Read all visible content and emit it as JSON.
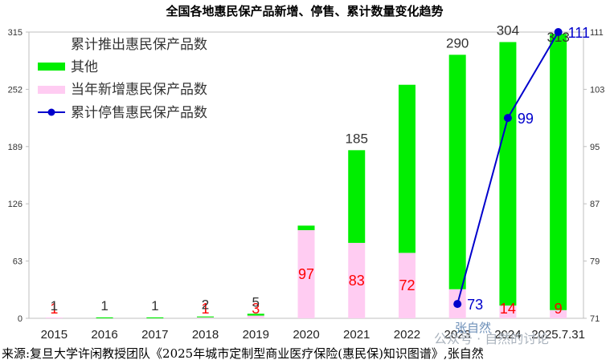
{
  "chart_data": {
    "type": "bar",
    "title": "全国各地惠民保产品新增、停售、累计数量变化趋势",
    "categories": [
      "2015",
      "2016",
      "2017",
      "2018",
      "2019",
      "2020",
      "2021",
      "2022",
      "2023",
      "2024",
      "2025.7.31"
    ],
    "category_labels": [
      "2015",
      "2016",
      "2017",
      "2018",
      "2019",
      "2020",
      "2021",
      "2022",
      "2023",
      "2024",
      "2025.7.31"
    ],
    "series": [
      {
        "name": "累计推出惠民保产品数",
        "role": "total_label",
        "values": [
          1,
          1,
          1,
          2,
          5,
          null,
          185,
          null,
          290,
          304,
          313
        ]
      },
      {
        "name": "其他",
        "color": "#00ee00",
        "values": [
          0,
          1,
          1,
          1,
          2,
          5,
          102,
          185,
          258,
          290,
          304
        ]
      },
      {
        "name": "当年新增惠民保产品数",
        "color": "#ffccf2",
        "values": [
          1,
          0,
          0,
          1,
          3,
          97,
          83,
          72,
          32,
          14,
          9
        ]
      },
      {
        "name": "累计停售惠民保产品数",
        "color": "#0000cc",
        "axis": "right",
        "x": [
          "2023",
          "2024",
          "2025.7.31"
        ],
        "values": [
          73,
          99,
          111
        ]
      }
    ],
    "new_labels": [
      "1",
      "",
      "",
      "1",
      "3",
      "97",
      "83",
      "72",
      "",
      "14",
      "9"
    ],
    "y_left": {
      "min": 0,
      "max": 315,
      "ticks": [
        "0",
        "63",
        "126",
        "189",
        "252",
        "315"
      ]
    },
    "y_right": {
      "min": 71,
      "max": 111,
      "ticks": [
        "71",
        "79",
        "87",
        "95",
        "103",
        "111"
      ]
    },
    "legend_position": "top-left",
    "grid": false
  },
  "source_text": "来源:复旦大学许闲教授团队《2025年城市定制型商业医疗保险(惠民保)知识图谱》,张自然",
  "watermark": {
    "account": "公众号 · 自然的讨论",
    "author": "张自然"
  }
}
